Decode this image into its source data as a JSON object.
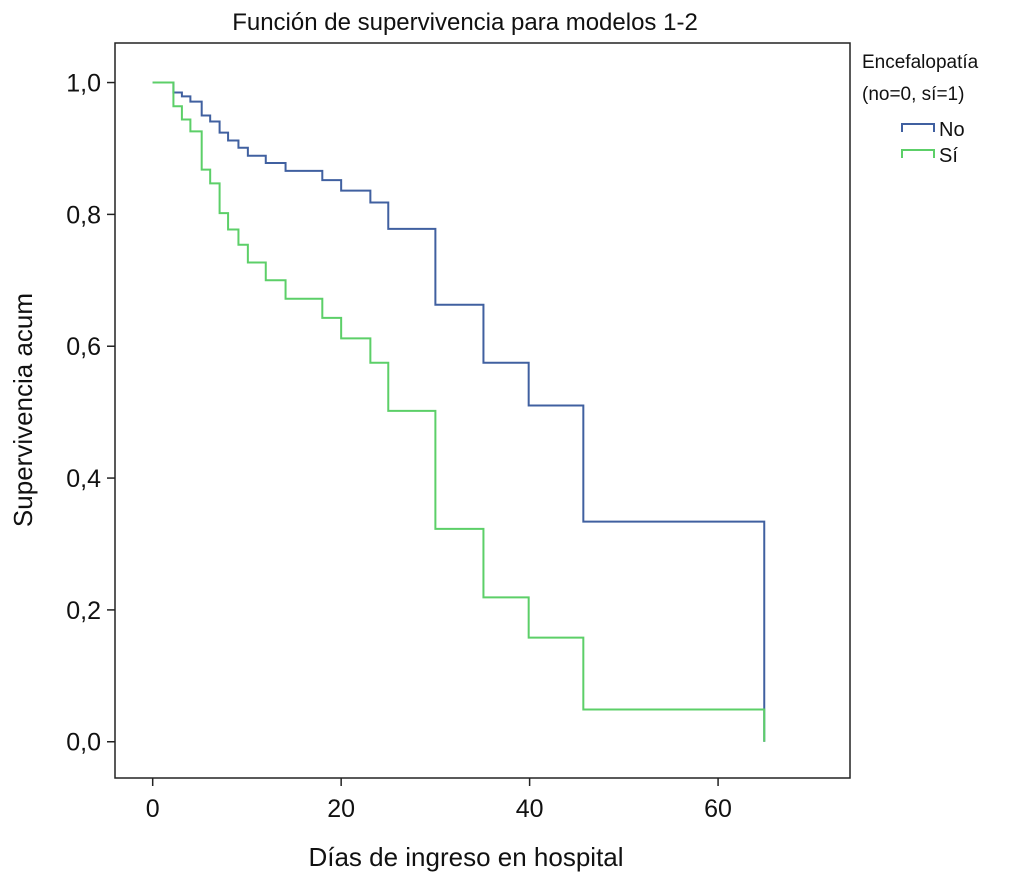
{
  "chart_data": {
    "type": "line",
    "step": true,
    "title": "Función de supervivencia para modelos 1-2",
    "xlabel": "Días de ingreso en hospital",
    "ylabel": "Supervivencia acum",
    "xlim": [
      -4,
      74
    ],
    "ylim": [
      -0.055,
      1.06
    ],
    "xticks": [
      0,
      20,
      40,
      60
    ],
    "xtick_labels": [
      "0",
      "20",
      "40",
      "60"
    ],
    "yticks": [
      0,
      0.2,
      0.4,
      0.6,
      0.8,
      1.0
    ],
    "ytick_labels": [
      "0,0",
      "0,2",
      "0,4",
      "0,6",
      "0,8",
      "1,0"
    ],
    "grid": false,
    "legend": {
      "title_line1": "Encefalopatía",
      "title_line2": "(no=0, sí=1)",
      "placement": "outside-top-right"
    },
    "series": [
      {
        "name": "No",
        "color": "#4060a0",
        "x": [
          0,
          2.2,
          3.1,
          4.0,
          5.2,
          6.1,
          7.1,
          8.0,
          9.1,
          10.1,
          12.0,
          14.1,
          18.0,
          20.0,
          23.1,
          25.0,
          30.0,
          35.1,
          39.9,
          45.7,
          64.9
        ],
        "y": [
          1.0,
          0.985,
          0.979,
          0.971,
          0.95,
          0.941,
          0.924,
          0.912,
          0.901,
          0.889,
          0.878,
          0.866,
          0.852,
          0.836,
          0.818,
          0.778,
          0.663,
          0.575,
          0.51,
          0.334,
          0.0
        ],
        "end_x": 64.9
      },
      {
        "name": "Sí",
        "color": "#5ccf68",
        "x": [
          0,
          2.2,
          3.1,
          4.0,
          5.2,
          6.1,
          7.1,
          8.0,
          9.1,
          10.1,
          12.0,
          14.1,
          18.0,
          20.0,
          23.1,
          25.0,
          30.0,
          35.1,
          39.9,
          45.7,
          64.9
        ],
        "y": [
          1.0,
          0.964,
          0.944,
          0.926,
          0.868,
          0.847,
          0.802,
          0.777,
          0.754,
          0.727,
          0.7,
          0.672,
          0.643,
          0.612,
          0.575,
          0.502,
          0.323,
          0.219,
          0.158,
          0.049,
          0.0
        ],
        "end_x": 64.9
      }
    ]
  }
}
